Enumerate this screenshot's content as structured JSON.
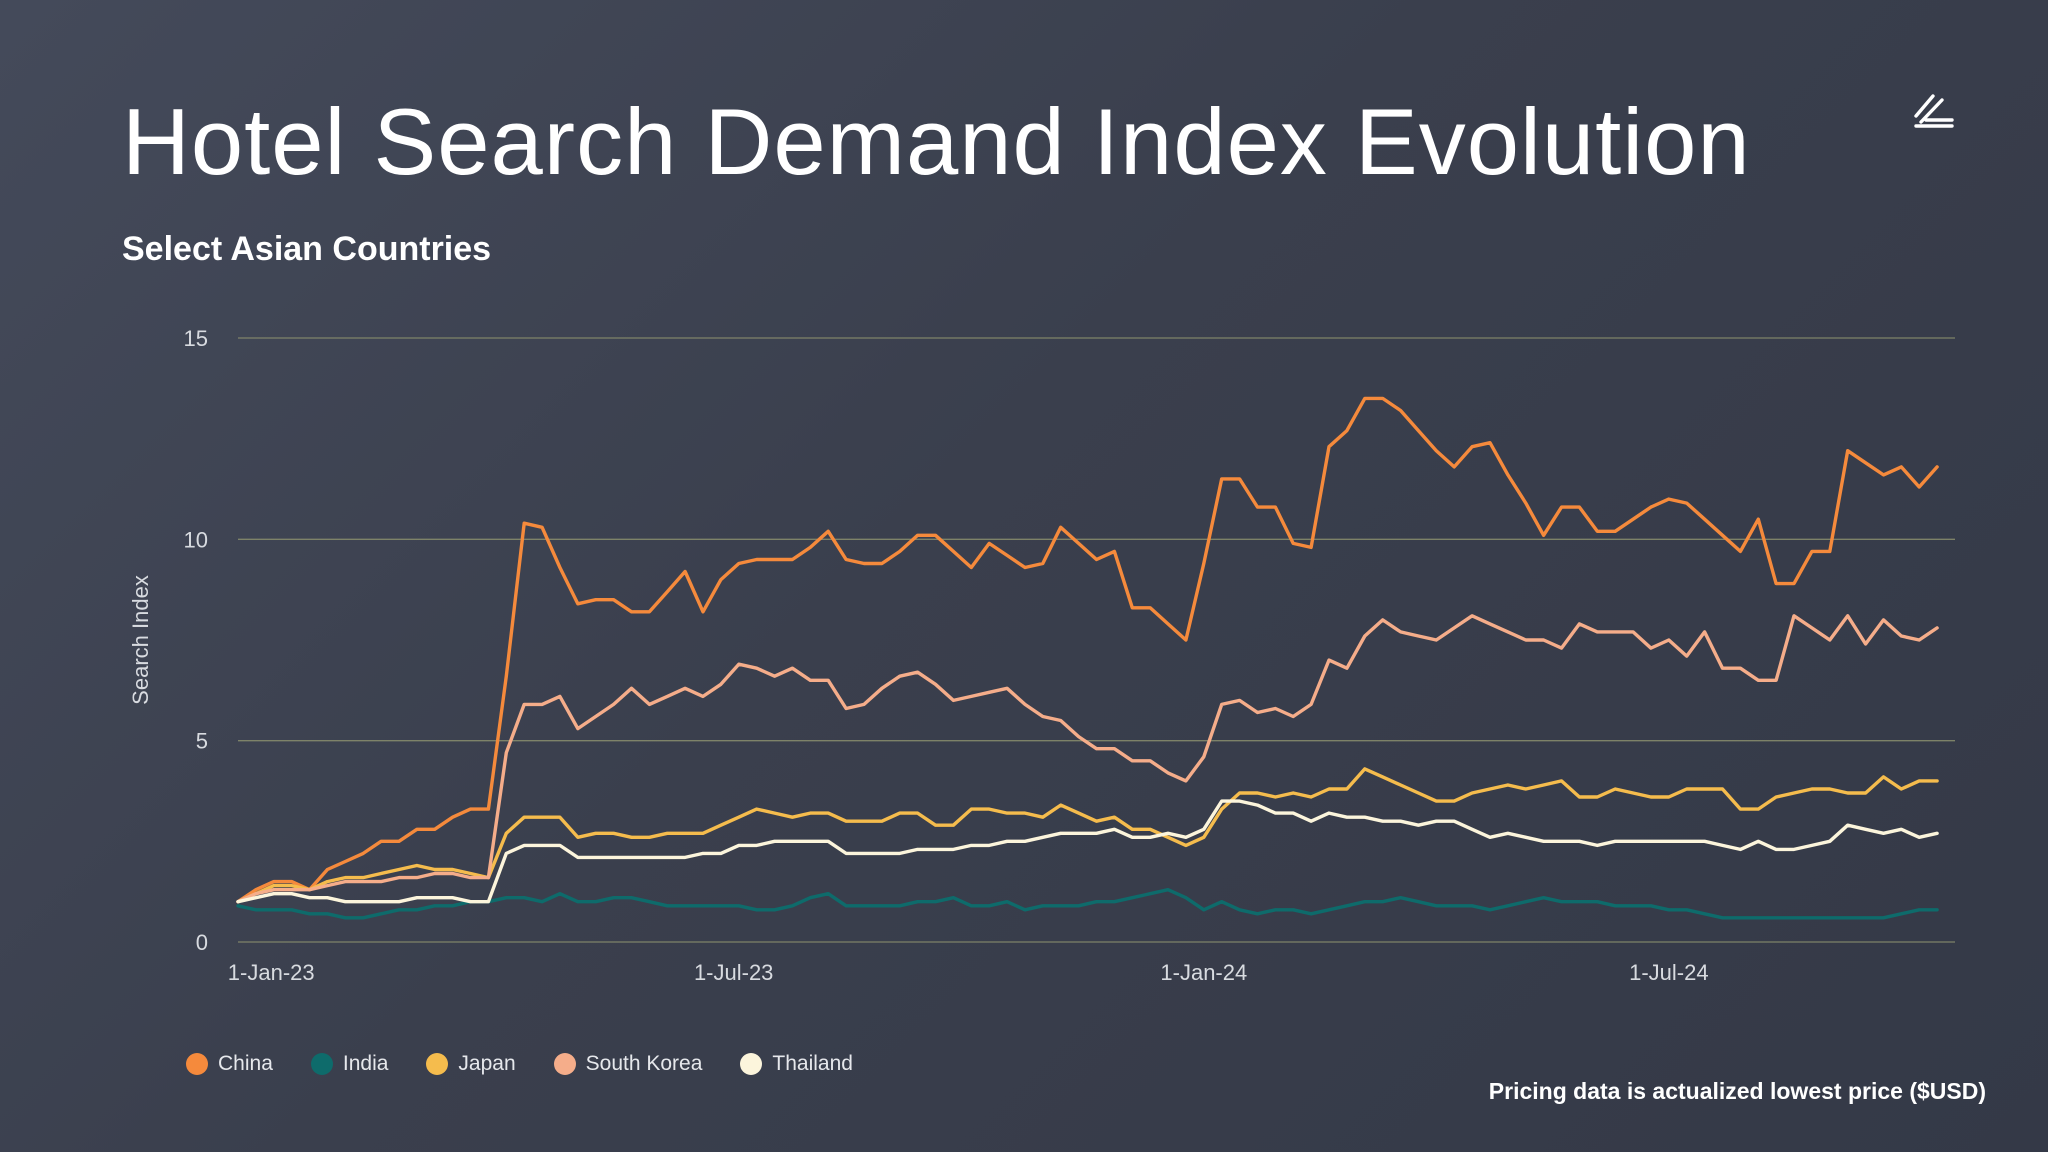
{
  "header": {
    "title": "Hotel Search Demand Index Evolution",
    "subtitle": "Select Asian Countries",
    "logo_icon": "slash-stack-logo-icon"
  },
  "footnote": "Pricing data is actualized lowest price ($USD)",
  "colors": {
    "China": "#f58a3c",
    "India": "#0e6b6b",
    "Japan": "#f5bc4d",
    "South Korea": "#f5ad8a",
    "Thailand": "#fcf5dc",
    "grid": "#8a8f6e",
    "tick_text": "#d8dbe0"
  },
  "chart_data": {
    "type": "line",
    "title": "Hotel Search Demand Index Evolution",
    "subtitle": "Select Asian Countries",
    "xlabel": "",
    "ylabel": "Search Index",
    "x_start": "2022-12-19",
    "x_end": "2024-10-21",
    "x_step": "weekly",
    "xticks": [
      {
        "label": "1-Jan-23",
        "date": "2023-01-01"
      },
      {
        "label": "1-Jul-23",
        "date": "2023-07-01"
      },
      {
        "label": "1-Jan-24",
        "date": "2024-01-01"
      },
      {
        "label": "1-Jul-24",
        "date": "2024-07-01"
      }
    ],
    "yticks": [
      0,
      5,
      10,
      15
    ],
    "ylim": [
      0,
      15
    ],
    "grid": "horizontal",
    "legend_position": "bottom-left",
    "series": [
      {
        "name": "China",
        "values": [
          1.0,
          1.3,
          1.5,
          1.5,
          1.3,
          1.8,
          2.0,
          2.2,
          2.5,
          2.5,
          2.8,
          2.8,
          3.1,
          3.3,
          3.3,
          6.6,
          10.4,
          10.3,
          9.3,
          8.4,
          8.5,
          8.5,
          8.2,
          8.2,
          8.7,
          9.2,
          8.2,
          9.0,
          9.4,
          9.5,
          9.5,
          9.5,
          9.8,
          10.2,
          9.5,
          9.4,
          9.4,
          9.7,
          10.1,
          10.1,
          9.7,
          9.3,
          9.9,
          9.6,
          9.3,
          9.4,
          10.3,
          9.9,
          9.5,
          9.7,
          8.3,
          8.3,
          7.9,
          7.5,
          9.4,
          11.5,
          11.5,
          10.8,
          10.8,
          9.9,
          9.8,
          12.3,
          12.7,
          13.5,
          13.5,
          13.2,
          12.7,
          12.2,
          11.8,
          12.3,
          12.4,
          11.6,
          10.9,
          10.1,
          10.8,
          10.8,
          10.2,
          10.2,
          10.5,
          10.8,
          11.0,
          10.9,
          10.5,
          10.1,
          9.7,
          10.5,
          8.9,
          8.9,
          9.7,
          9.7,
          12.2,
          11.9,
          11.6,
          11.8,
          11.3,
          11.8
        ]
      },
      {
        "name": "India",
        "values": [
          0.9,
          0.8,
          0.8,
          0.8,
          0.7,
          0.7,
          0.6,
          0.6,
          0.7,
          0.8,
          0.8,
          0.9,
          0.9,
          1.0,
          1.0,
          1.1,
          1.1,
          1.0,
          1.2,
          1.0,
          1.0,
          1.1,
          1.1,
          1.0,
          0.9,
          0.9,
          0.9,
          0.9,
          0.9,
          0.8,
          0.8,
          0.9,
          1.1,
          1.2,
          0.9,
          0.9,
          0.9,
          0.9,
          1.0,
          1.0,
          1.1,
          0.9,
          0.9,
          1.0,
          0.8,
          0.9,
          0.9,
          0.9,
          1.0,
          1.0,
          1.1,
          1.2,
          1.3,
          1.1,
          0.8,
          1.0,
          0.8,
          0.7,
          0.8,
          0.8,
          0.7,
          0.8,
          0.9,
          1.0,
          1.0,
          1.1,
          1.0,
          0.9,
          0.9,
          0.9,
          0.8,
          0.9,
          1.0,
          1.1,
          1.0,
          1.0,
          1.0,
          0.9,
          0.9,
          0.9,
          0.8,
          0.8,
          0.7,
          0.6,
          0.6,
          0.6,
          0.6,
          0.6,
          0.6,
          0.6,
          0.6,
          0.6,
          0.6,
          0.7,
          0.8,
          0.8
        ]
      },
      {
        "name": "Japan",
        "values": [
          1.0,
          1.2,
          1.4,
          1.4,
          1.3,
          1.5,
          1.6,
          1.6,
          1.7,
          1.8,
          1.9,
          1.8,
          1.8,
          1.7,
          1.6,
          2.7,
          3.1,
          3.1,
          3.1,
          2.6,
          2.7,
          2.7,
          2.6,
          2.6,
          2.7,
          2.7,
          2.7,
          2.9,
          3.1,
          3.3,
          3.2,
          3.1,
          3.2,
          3.2,
          3.0,
          3.0,
          3.0,
          3.2,
          3.2,
          2.9,
          2.9,
          3.3,
          3.3,
          3.2,
          3.2,
          3.1,
          3.4,
          3.2,
          3.0,
          3.1,
          2.8,
          2.8,
          2.6,
          2.4,
          2.6,
          3.3,
          3.7,
          3.7,
          3.6,
          3.7,
          3.6,
          3.8,
          3.8,
          4.3,
          4.1,
          3.9,
          3.7,
          3.5,
          3.5,
          3.7,
          3.8,
          3.9,
          3.8,
          3.9,
          4.0,
          3.6,
          3.6,
          3.8,
          3.7,
          3.6,
          3.6,
          3.8,
          3.8,
          3.8,
          3.3,
          3.3,
          3.6,
          3.7,
          3.8,
          3.8,
          3.7,
          3.7,
          4.1,
          3.8,
          4.0,
          4.0
        ]
      },
      {
        "name": "South Korea",
        "values": [
          1.0,
          1.2,
          1.3,
          1.3,
          1.3,
          1.4,
          1.5,
          1.5,
          1.5,
          1.6,
          1.6,
          1.7,
          1.7,
          1.6,
          1.6,
          4.7,
          5.9,
          5.9,
          6.1,
          5.3,
          5.6,
          5.9,
          6.3,
          5.9,
          6.1,
          6.3,
          6.1,
          6.4,
          6.9,
          6.8,
          6.6,
          6.8,
          6.5,
          6.5,
          5.8,
          5.9,
          6.3,
          6.6,
          6.7,
          6.4,
          6.0,
          6.1,
          6.2,
          6.3,
          5.9,
          5.6,
          5.5,
          5.1,
          4.8,
          4.8,
          4.5,
          4.5,
          4.2,
          4.0,
          4.6,
          5.9,
          6.0,
          5.7,
          5.8,
          5.6,
          5.9,
          7.0,
          6.8,
          7.6,
          8.0,
          7.7,
          7.6,
          7.5,
          7.8,
          8.1,
          7.9,
          7.7,
          7.5,
          7.5,
          7.3,
          7.9,
          7.7,
          7.7,
          7.7,
          7.3,
          7.5,
          7.1,
          7.7,
          6.8,
          6.8,
          6.5,
          6.5,
          8.1,
          7.8,
          7.5,
          8.1,
          7.4,
          8.0,
          7.6,
          7.5,
          7.8
        ]
      },
      {
        "name": "Thailand",
        "values": [
          1.0,
          1.1,
          1.2,
          1.2,
          1.1,
          1.1,
          1.0,
          1.0,
          1.0,
          1.0,
          1.1,
          1.1,
          1.1,
          1.0,
          1.0,
          2.2,
          2.4,
          2.4,
          2.4,
          2.1,
          2.1,
          2.1,
          2.1,
          2.1,
          2.1,
          2.1,
          2.2,
          2.2,
          2.4,
          2.4,
          2.5,
          2.5,
          2.5,
          2.5,
          2.2,
          2.2,
          2.2,
          2.2,
          2.3,
          2.3,
          2.3,
          2.4,
          2.4,
          2.5,
          2.5,
          2.6,
          2.7,
          2.7,
          2.7,
          2.8,
          2.6,
          2.6,
          2.7,
          2.6,
          2.8,
          3.5,
          3.5,
          3.4,
          3.2,
          3.2,
          3.0,
          3.2,
          3.1,
          3.1,
          3.0,
          3.0,
          2.9,
          3.0,
          3.0,
          2.8,
          2.6,
          2.7,
          2.6,
          2.5,
          2.5,
          2.5,
          2.4,
          2.5,
          2.5,
          2.5,
          2.5,
          2.5,
          2.5,
          2.4,
          2.3,
          2.5,
          2.3,
          2.3,
          2.4,
          2.5,
          2.9,
          2.8,
          2.7,
          2.8,
          2.6,
          2.7
        ]
      }
    ]
  }
}
